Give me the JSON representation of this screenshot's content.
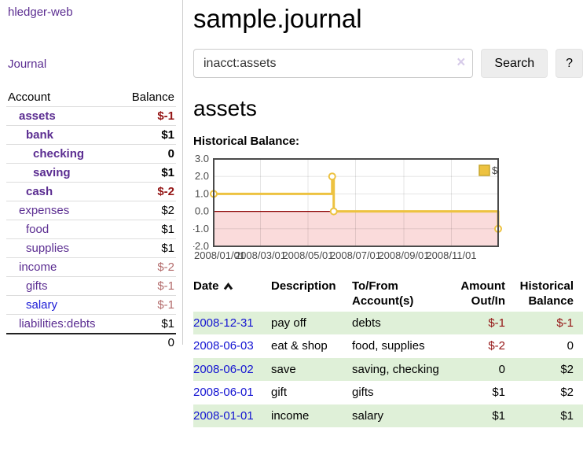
{
  "colors": {
    "link_purple": "#5b2d91",
    "link_blue": "#1414d2",
    "negative_strong": "#941414",
    "negative_muted": "#b36b6b",
    "row_green": "#dff0d8",
    "series_yellow": "#edc240",
    "zero_line": "#8b0000",
    "negative_region": "#fadbdb",
    "button_bg": "#ededed"
  },
  "sidebar": {
    "brand": "hledger-web",
    "journal_link": "Journal",
    "accounts": {
      "headers": {
        "account": "Account",
        "balance": "Balance"
      },
      "rows": [
        {
          "name": "assets",
          "indent": 1,
          "bold": true,
          "balance": "$-1",
          "balance_class": "neg-strong"
        },
        {
          "name": "bank",
          "indent": 2,
          "bold": true,
          "balance": "$1",
          "balance_class": ""
        },
        {
          "name": "checking",
          "indent": 3,
          "bold": true,
          "balance": "0",
          "balance_class": ""
        },
        {
          "name": "saving",
          "indent": 3,
          "bold": true,
          "balance": "$1",
          "balance_class": ""
        },
        {
          "name": "cash",
          "indent": 2,
          "bold": true,
          "balance": "$-2",
          "balance_class": "neg-strong"
        },
        {
          "name": "expenses",
          "indent": 1,
          "bold": false,
          "balance": "$2",
          "balance_class": ""
        },
        {
          "name": "food",
          "indent": 2,
          "bold": false,
          "balance": "$1",
          "balance_class": ""
        },
        {
          "name": "supplies",
          "indent": 2,
          "bold": false,
          "balance": "$1",
          "balance_class": ""
        },
        {
          "name": "income",
          "indent": 1,
          "bold": false,
          "balance": "$-2",
          "balance_class": "neg-muted"
        },
        {
          "name": "gifts",
          "indent": 2,
          "bold": false,
          "balance": "$-1",
          "balance_class": "neg-muted"
        },
        {
          "name": "salary",
          "indent": 2,
          "bold": false,
          "balance": "$-1",
          "balance_class": "neg-muted",
          "link_style": "blue"
        },
        {
          "name": "liabilities:debts",
          "indent": 1,
          "bold": false,
          "balance": "$1",
          "balance_class": ""
        }
      ],
      "total": "0"
    }
  },
  "header": {
    "title": "sample.journal"
  },
  "search": {
    "value": "inacct:assets",
    "clear_icon": "×",
    "search_button": "Search",
    "help_button": "?"
  },
  "account_view": {
    "heading": "assets",
    "chart_title": "Historical Balance:"
  },
  "chart_data": {
    "type": "line",
    "step": true,
    "title": "Historical Balance:",
    "x_range": [
      "2008-01-01",
      "2008-12-31"
    ],
    "ylim": [
      -2,
      3
    ],
    "y_ticks": [
      {
        "value": 3,
        "label": "3.0"
      },
      {
        "value": 2,
        "label": "2.0"
      },
      {
        "value": 1,
        "label": "1.0"
      },
      {
        "value": 0,
        "label": "0.0"
      },
      {
        "value": -1,
        "label": "-1.0"
      },
      {
        "value": -2,
        "label": "-2.0"
      }
    ],
    "x_ticks": [
      {
        "date": "2008-01-01",
        "label": "2008/01/01"
      },
      {
        "date": "2008-03-01",
        "label": "2008/03/01"
      },
      {
        "date": "2008-05-01",
        "label": "2008/05/01"
      },
      {
        "date": "2008-07-01",
        "label": "2008/07/01"
      },
      {
        "date": "2008-09-01",
        "label": "2008/09/01"
      },
      {
        "date": "2008-11-01",
        "label": "2008/11/01"
      }
    ],
    "series": [
      {
        "name": "$",
        "color": "#edc240",
        "points": [
          {
            "date": "2008-01-01",
            "value": 1
          },
          {
            "date": "2008-06-01",
            "value": 2
          },
          {
            "date": "2008-06-03",
            "value": 0
          },
          {
            "date": "2008-12-31",
            "value": -1
          }
        ]
      }
    ],
    "legend": {
      "label": "$",
      "position": "top-right"
    },
    "grid": true,
    "zero_line_color": "#8b0000",
    "negative_region_color": "#fadbdb"
  },
  "register": {
    "columns": [
      {
        "label": "Date",
        "sorted": "asc"
      },
      {
        "label": "Description"
      },
      {
        "label": "To/From Account(s)"
      },
      {
        "label": "Amount Out/In",
        "align": "right"
      },
      {
        "label": "Historical Balance",
        "align": "right"
      }
    ],
    "rows": [
      {
        "date": "2008-12-31",
        "description": "pay off",
        "accounts": "debts",
        "amount": "$-1",
        "amount_class": "neg-strong",
        "balance": "$-1",
        "balance_class": "neg-strong"
      },
      {
        "date": "2008-06-03",
        "description": "eat & shop",
        "accounts": "food, supplies",
        "amount": "$-2",
        "amount_class": "neg-strong",
        "balance": "0",
        "balance_class": ""
      },
      {
        "date": "2008-06-02",
        "description": "save",
        "accounts": "saving, checking",
        "amount": "0",
        "amount_class": "",
        "balance": "$2",
        "balance_class": ""
      },
      {
        "date": "2008-06-01",
        "description": "gift",
        "accounts": "gifts",
        "amount": "$1",
        "amount_class": "",
        "balance": "$2",
        "balance_class": ""
      },
      {
        "date": "2008-01-01",
        "description": "income",
        "accounts": "salary",
        "amount": "$1",
        "amount_class": "",
        "balance": "$1",
        "balance_class": ""
      }
    ]
  }
}
